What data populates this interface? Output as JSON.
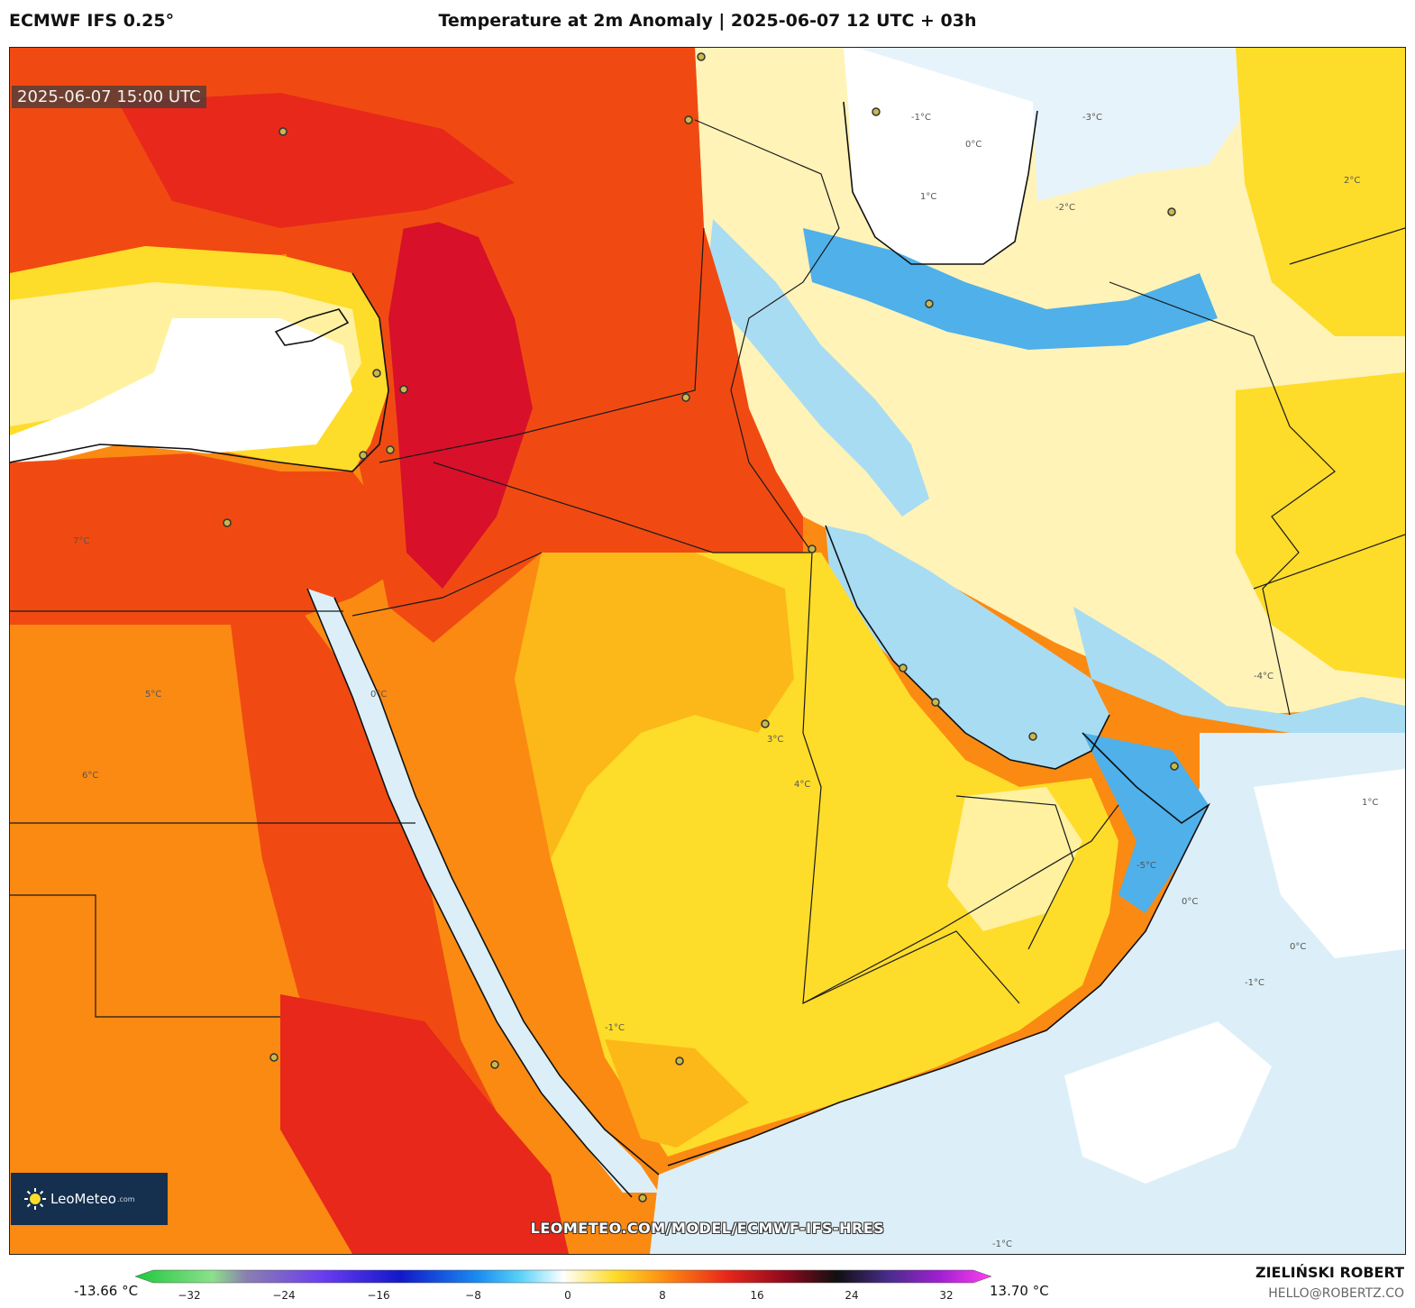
{
  "header": {
    "model": "ECMWF IFS 0.25°",
    "title": "Temperature at 2m Anomaly | 2025-06-07 12 UTC + 03h"
  },
  "map": {
    "valid_time": "2025-06-07 15:00 UTC",
    "url": "LEOMETEO.COM/MODEL/ECMWF-IFS-HRES",
    "logo_text": "LeoMeteo",
    "logo_domain": ".com",
    "contour_labels": [
      "-1°C",
      "0°C",
      "1°C",
      "2°C",
      "3°C",
      "4°C",
      "5°C",
      "6°C",
      "7°C",
      "-5°C",
      "-4°C",
      "-3°C",
      "-2°C"
    ]
  },
  "colorbar": {
    "min_label": "-13.66 °C",
    "max_label": "13.70 °C",
    "ticks": [
      "−32",
      "−24",
      "−16",
      "−8",
      "0",
      "8",
      "16",
      "24",
      "32"
    ]
  },
  "footer": {
    "author": "ZIELIŃSKI ROBERT",
    "email": "HELLO@ROBERTZ.CO"
  },
  "colors": {
    "very_warm": "#d8102a",
    "warm": "#f04a12",
    "orange": "#fb8a12",
    "light_orange": "#fcb818",
    "yellow": "#fedc2a",
    "pale_yellow": "#fff1a0",
    "neutral": "#ffffff",
    "pale_blue": "#dceff8",
    "light_blue": "#a8dcf2",
    "blue": "#4fb0ea"
  }
}
